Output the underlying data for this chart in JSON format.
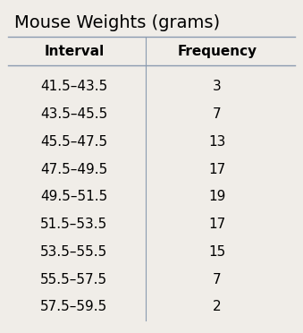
{
  "title": "Mouse Weights (grams)",
  "col_headers": [
    "Interval",
    "Frequency"
  ],
  "intervals": [
    "41.5–43.5",
    "43.5–45.5",
    "45.5–47.5",
    "47.5–49.5",
    "49.5–51.5",
    "51.5–53.5",
    "53.5–55.5",
    "55.5–57.5",
    "57.5–59.5"
  ],
  "frequencies": [
    3,
    7,
    13,
    17,
    19,
    17,
    15,
    7,
    2
  ],
  "background_color": "#f0ede8",
  "line_color": "#8a9bb0",
  "title_fontsize": 14,
  "header_fontsize": 11,
  "data_fontsize": 11,
  "fig_width": 3.39,
  "fig_height": 3.72
}
